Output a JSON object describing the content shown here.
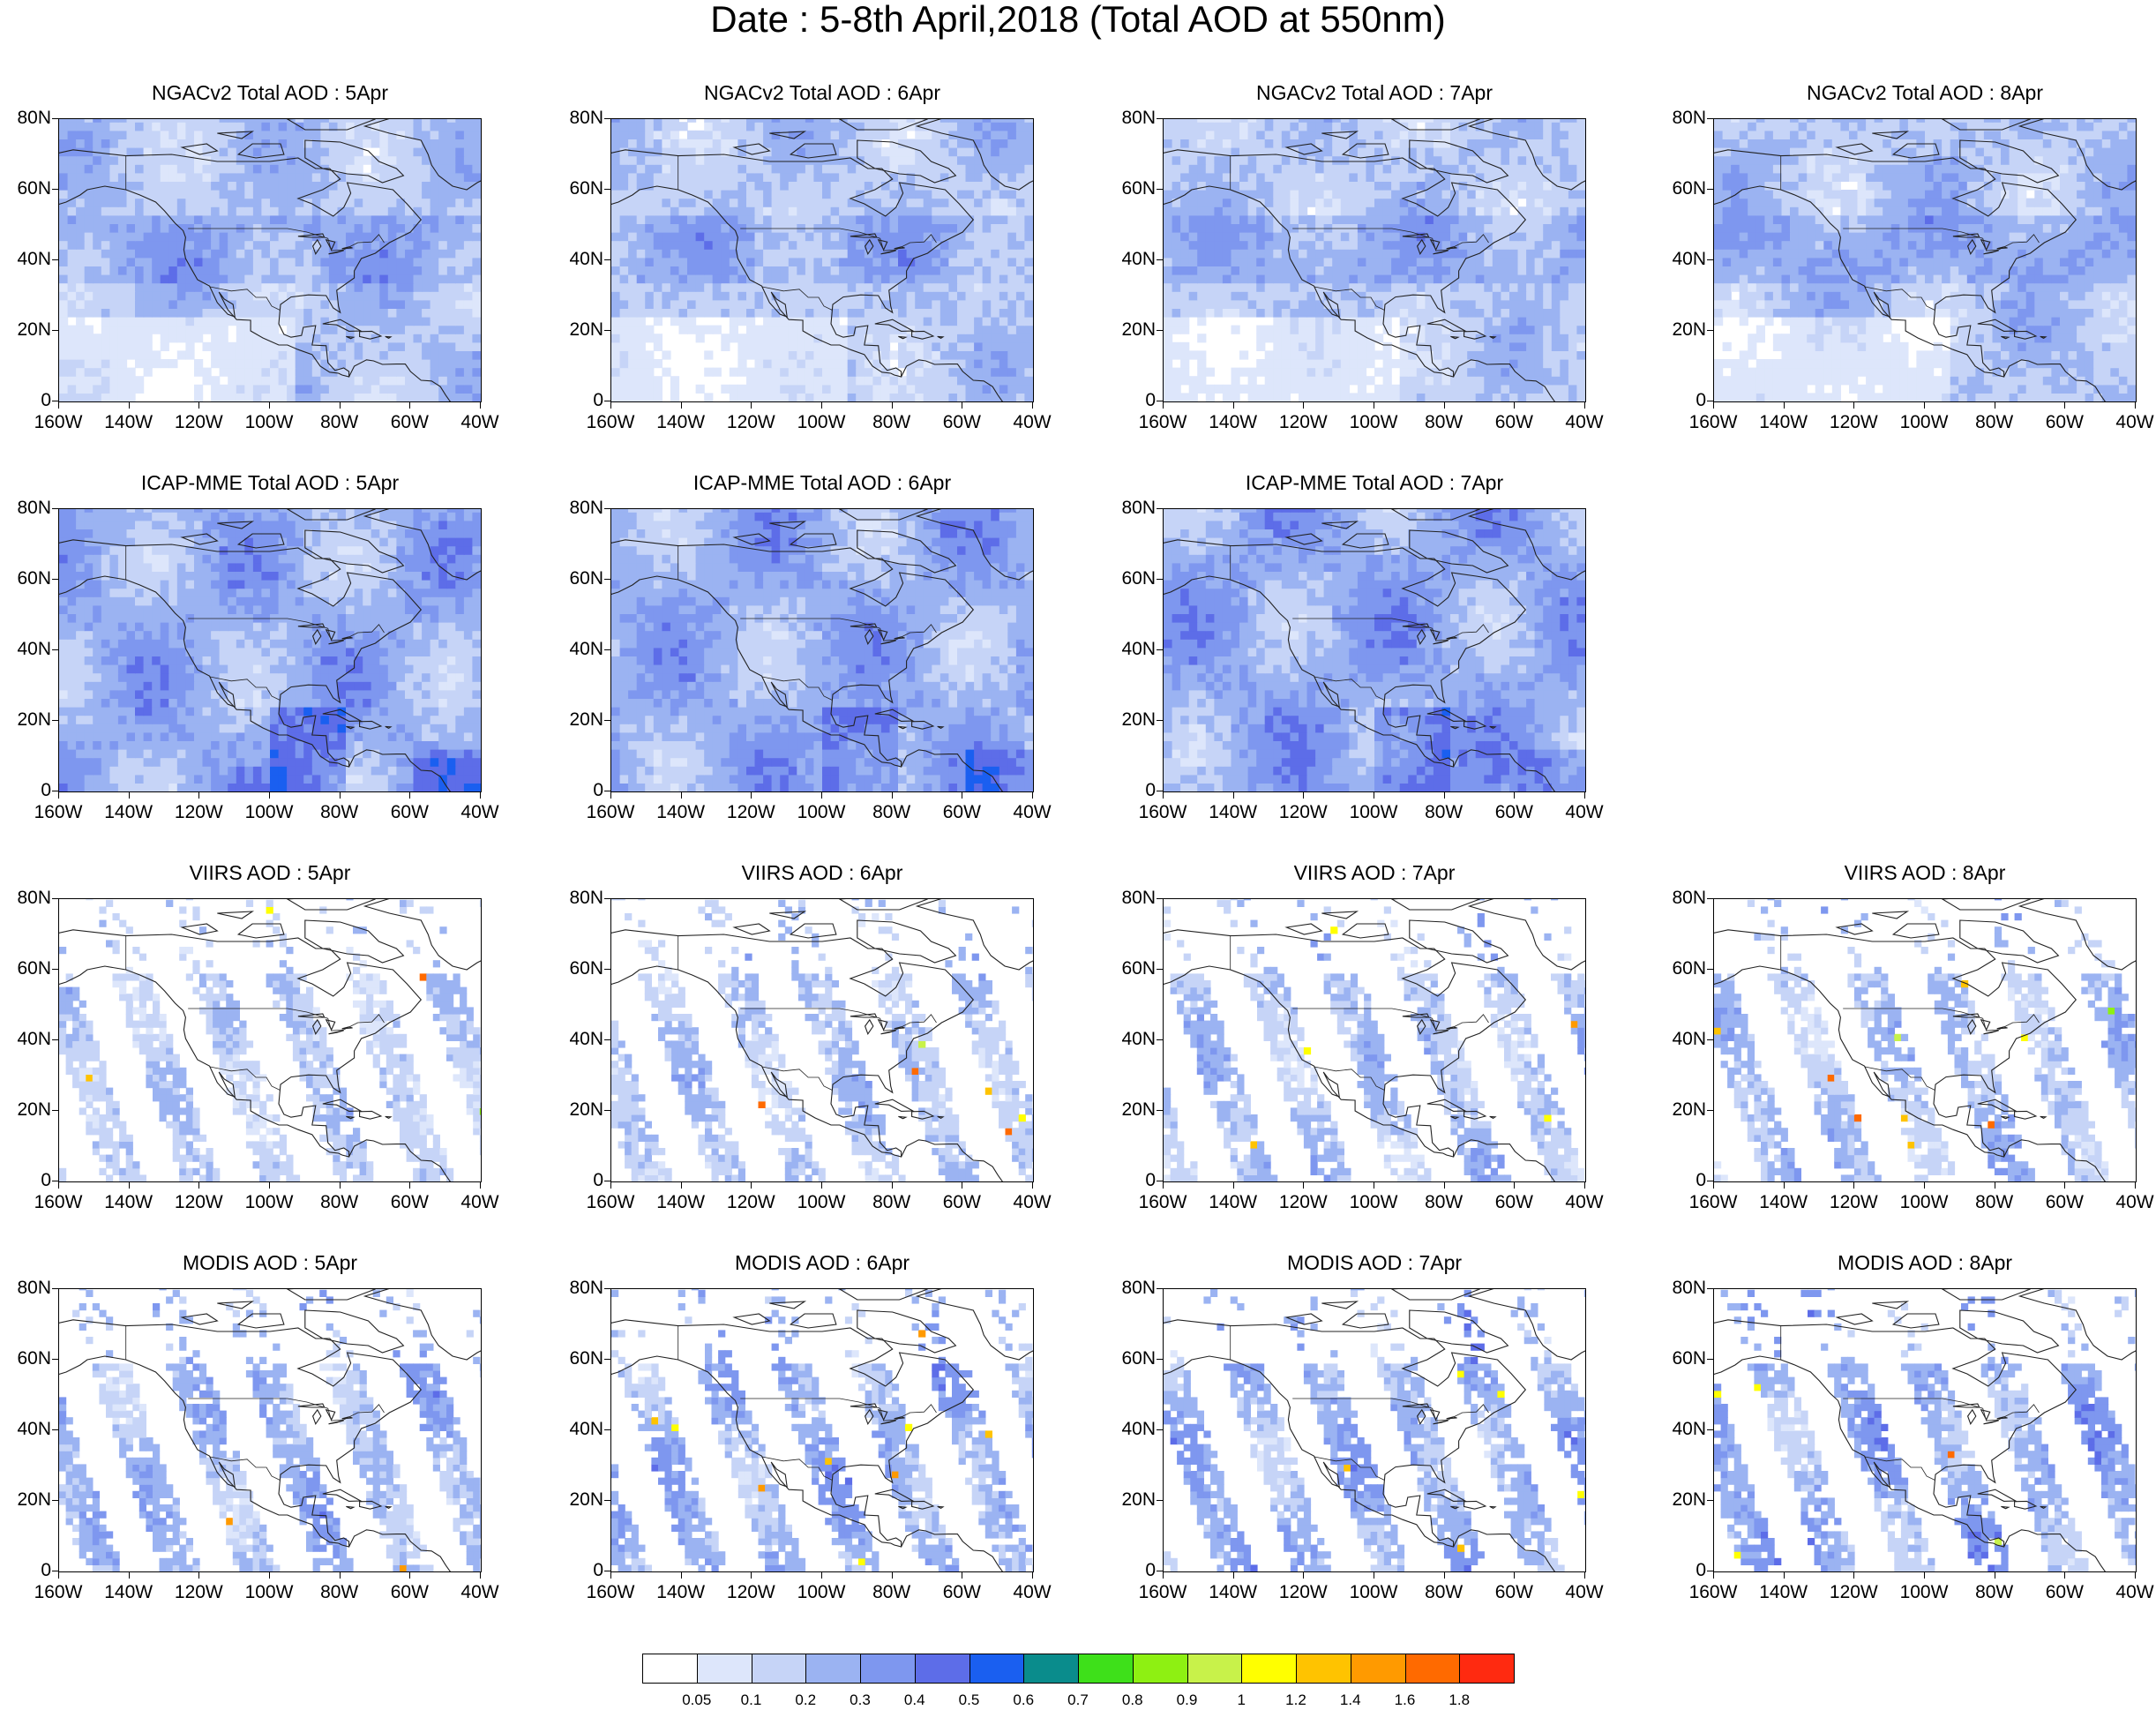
{
  "title": "Date : 5-8th April,2018 (Total AOD at 550nm)",
  "lat_labels": [
    "80N",
    "60N",
    "40N",
    "20N",
    "0"
  ],
  "lon_labels": [
    "160W",
    "140W",
    "120W",
    "100W",
    "80W",
    "60W",
    "40W"
  ],
  "map_extent": {
    "lon_min": -160,
    "lon_max": -40,
    "lat_min": 0,
    "lat_max": 80
  },
  "panels": [
    {
      "row": 0,
      "col": 0,
      "title": "NGACv2 Total AOD : 5Apr",
      "style": "model",
      "intensity": 0.3
    },
    {
      "row": 0,
      "col": 1,
      "title": "NGACv2 Total AOD : 6Apr",
      "style": "model",
      "intensity": 0.28
    },
    {
      "row": 0,
      "col": 2,
      "title": "NGACv2 Total AOD : 7Apr",
      "style": "model",
      "intensity": 0.28
    },
    {
      "row": 0,
      "col": 3,
      "title": "NGACv2 Total AOD : 8Apr",
      "style": "model",
      "intensity": 0.3
    },
    {
      "row": 1,
      "col": 0,
      "title": "ICAP-MME Total AOD : 5Apr",
      "style": "ensemble",
      "intensity": 0.4
    },
    {
      "row": 1,
      "col": 1,
      "title": "ICAP-MME Total AOD : 6Apr",
      "style": "ensemble",
      "intensity": 0.4
    },
    {
      "row": 1,
      "col": 2,
      "title": "ICAP-MME Total AOD : 7Apr",
      "style": "ensemble",
      "intensity": 0.42
    },
    {
      "row": 2,
      "col": 0,
      "title": "VIIRS AOD : 5Apr",
      "style": "satellite",
      "intensity": 0.25
    },
    {
      "row": 2,
      "col": 1,
      "title": "VIIRS AOD : 6Apr",
      "style": "satellite",
      "intensity": 0.28
    },
    {
      "row": 2,
      "col": 2,
      "title": "VIIRS AOD : 7Apr",
      "style": "satellite",
      "intensity": 0.3
    },
    {
      "row": 2,
      "col": 3,
      "title": "VIIRS AOD : 8Apr",
      "style": "satellite",
      "intensity": 0.3
    },
    {
      "row": 3,
      "col": 0,
      "title": "MODIS AOD : 5Apr",
      "style": "satellite",
      "intensity": 0.35
    },
    {
      "row": 3,
      "col": 1,
      "title": "MODIS AOD : 6Apr",
      "style": "satellite",
      "intensity": 0.38
    },
    {
      "row": 3,
      "col": 2,
      "title": "MODIS AOD : 7Apr",
      "style": "satellite",
      "intensity": 0.38
    },
    {
      "row": 3,
      "col": 3,
      "title": "MODIS AOD : 8Apr",
      "style": "satellite",
      "intensity": 0.4
    }
  ],
  "colorbar": {
    "labels": [
      "0.05",
      "0.1",
      "0.2",
      "0.3",
      "0.4",
      "0.5",
      "0.6",
      "0.7",
      "0.8",
      "0.9",
      "1",
      "1.2",
      "1.4",
      "1.6",
      "1.8"
    ],
    "colors": [
      "#ffffff",
      "#dde6fb",
      "#c6d4f7",
      "#9bb3f2",
      "#7e97ef",
      "#5d6de8",
      "#1a5ff0",
      "#0a8c8c",
      "#3ee01a",
      "#8ef012",
      "#c8f24a",
      "#ffff00",
      "#ffc300",
      "#ff9a00",
      "#ff6a00",
      "#ff2a10"
    ]
  }
}
